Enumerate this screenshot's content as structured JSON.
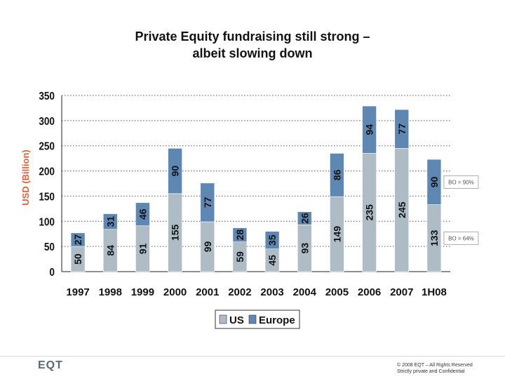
{
  "slide": {
    "title_line1": "Private Equity fundraising still strong –",
    "title_line2": "albeit slowing down",
    "logo": "EQT",
    "copyright_line1": "© 2008 EQT – All Rights Reserved",
    "copyright_line2": "Strictly private and Confidential"
  },
  "chart_data": {
    "type": "bar",
    "stacked": true,
    "title": "",
    "xlabel": "",
    "ylabel": "USD (Billion)",
    "ylim": [
      0,
      350
    ],
    "yticks": [
      0,
      50,
      100,
      150,
      200,
      250,
      300,
      350
    ],
    "grid": "dashed horizontal",
    "legend_position": "bottom",
    "categories": [
      "1997",
      "1998",
      "1999",
      "2000",
      "2001",
      "2002",
      "2003",
      "2004",
      "2005",
      "2006",
      "2007",
      "1H08"
    ],
    "series": [
      {
        "name": "US",
        "color": "#aebcc6",
        "values": [
          50,
          84,
          91,
          155,
          99,
          59,
          45,
          93,
          149,
          235,
          245,
          133
        ]
      },
      {
        "name": "Europe",
        "color": "#5e88b3",
        "values": [
          27,
          31,
          46,
          90,
          77,
          28,
          35,
          26,
          86,
          94,
          77,
          90
        ]
      }
    ],
    "annotations": [
      {
        "text": "BO = 90%",
        "category": "1H08",
        "series": "Europe"
      },
      {
        "text": "BO = 64%",
        "category": "1H08",
        "series": "US"
      }
    ]
  }
}
